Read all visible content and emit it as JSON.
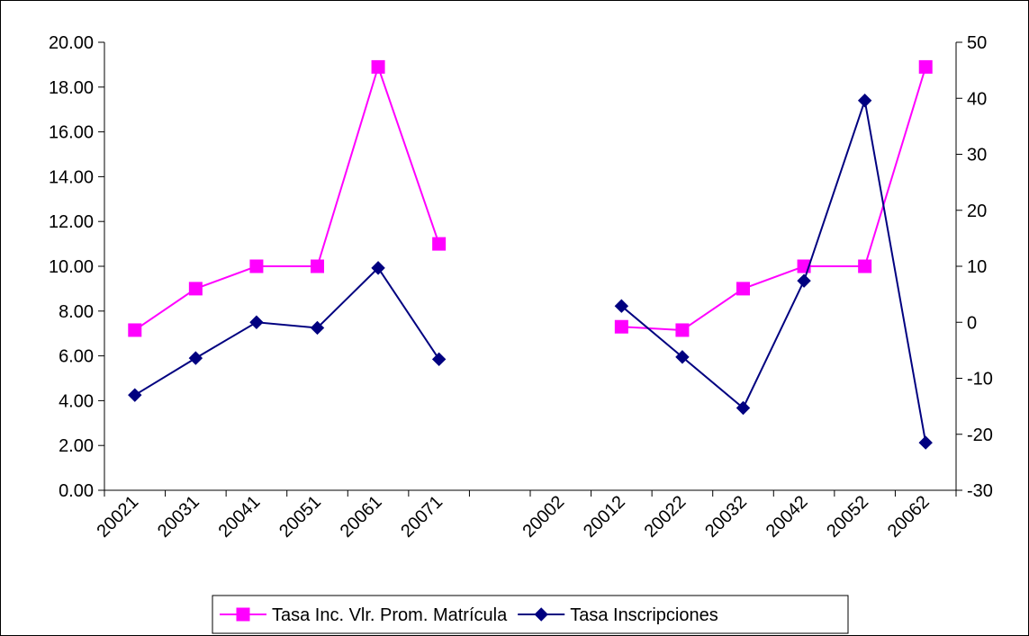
{
  "chart_data": {
    "type": "line",
    "categories": [
      "20021",
      "20031",
      "20041",
      "20051",
      "20061",
      "20071",
      "",
      "20002",
      "20012",
      "20022",
      "20032",
      "20042",
      "20052",
      "20062"
    ],
    "series": [
      {
        "name": "Tasa Inc. Vlr. Prom. Matrícula",
        "axis": "left",
        "color": "#FF00FF",
        "marker": "square",
        "values": [
          7.15,
          9.0,
          10.0,
          10.0,
          18.9,
          11.0,
          null,
          null,
          7.3,
          7.15,
          9.0,
          10.0,
          10.0,
          18.9
        ]
      },
      {
        "name": "Tasa Inscripciones",
        "axis": "right",
        "color": "#000080",
        "marker": "diamond",
        "values": [
          -13.0,
          -6.4,
          0.0,
          -1.0,
          9.7,
          -6.6,
          null,
          null,
          2.9,
          -6.2,
          -15.3,
          7.4,
          39.6,
          -21.5
        ]
      }
    ],
    "y_left": {
      "ylim": [
        0,
        20
      ],
      "ticks": [
        "0.00",
        "2.00",
        "4.00",
        "6.00",
        "8.00",
        "10.00",
        "12.00",
        "14.00",
        "16.00",
        "18.00",
        "20.00"
      ]
    },
    "y_right": {
      "ylim": [
        -30,
        50
      ],
      "ticks": [
        "-30",
        "-20",
        "-10",
        "0",
        "10",
        "20",
        "30",
        "40",
        "50"
      ]
    },
    "grid": false,
    "legend_position": "bottom-center",
    "title": "",
    "xlabel": "",
    "ylabel": ""
  }
}
